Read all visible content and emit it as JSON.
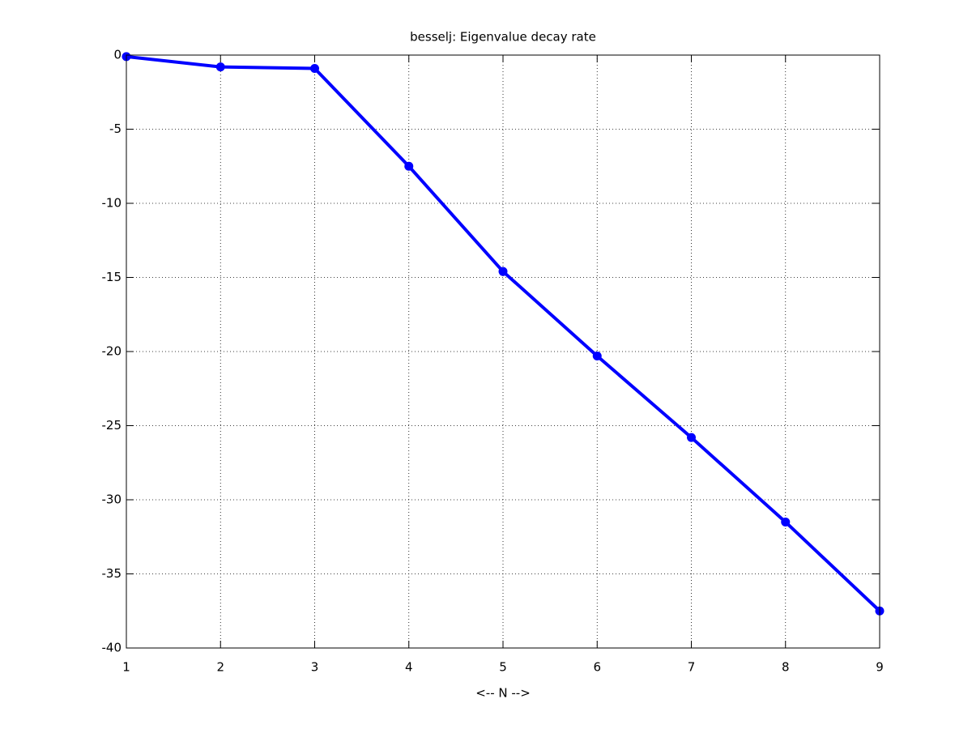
{
  "chart_data": {
    "type": "line",
    "title": "besselj: Eigenvalue decay rate",
    "x_label": "<-- N -->",
    "x": [
      1,
      2,
      3,
      4,
      5,
      6,
      7,
      8,
      9
    ],
    "values": [
      -0.1,
      -0.8,
      -0.9,
      -7.5,
      -14.6,
      -20.3,
      -25.8,
      -31.5,
      -37.5
    ],
    "color": "#0000ff",
    "xlim": [
      1,
      9
    ],
    "xticks": [
      1,
      2,
      3,
      4,
      5,
      6,
      7,
      8,
      9
    ],
    "ylim": [
      -40,
      0
    ],
    "yticks": [
      -40,
      -35,
      -30,
      -25,
      -20,
      -15,
      -10,
      -5,
      0
    ],
    "grid": true
  }
}
